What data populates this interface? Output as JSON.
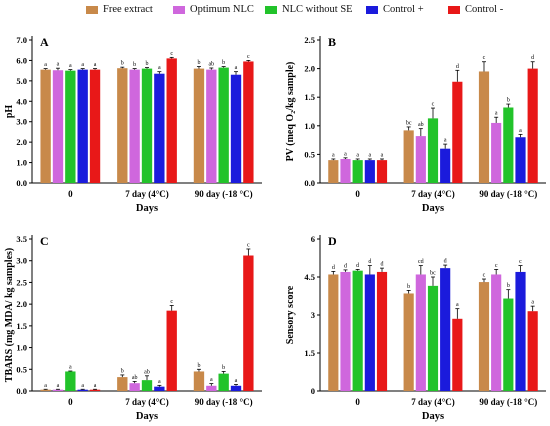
{
  "legend": {
    "items": [
      {
        "label": "Free extract",
        "color": "#c8894a"
      },
      {
        "label": "Optimum NLC",
        "color": "#cf67dd"
      },
      {
        "label": "NLC without SE",
        "color": "#22c32a"
      },
      {
        "label": "Control +",
        "color": "#1b1bdc"
      },
      {
        "label": "Control -",
        "color": "#e81818"
      }
    ]
  },
  "chart_data": [
    {
      "type": "bar",
      "panel": "A",
      "ylabel": "pH",
      "xlabel": "Days",
      "categories": [
        "0",
        "7 day (4°C)",
        "90 day (-18 °C)"
      ],
      "ylim": [
        0,
        7
      ],
      "yticks": [
        "0.0",
        "1.0",
        "2.0",
        "3.0",
        "4.0",
        "5.0",
        "6.0",
        "7.0"
      ],
      "series": [
        {
          "name": "Free extract",
          "values": [
            5.55,
            5.62,
            5.6
          ],
          "errors": [
            0.05,
            0.05,
            0.1
          ],
          "letters": [
            "a",
            "b",
            "b"
          ]
        },
        {
          "name": "Optimum NLC",
          "values": [
            5.52,
            5.55,
            5.55
          ],
          "errors": [
            0.1,
            0.05,
            0.08
          ],
          "letters": [
            "a",
            "b",
            "ab"
          ]
        },
        {
          "name": "NLC without SE",
          "values": [
            5.5,
            5.6,
            5.65
          ],
          "errors": [
            0.05,
            0.05,
            0.05
          ],
          "letters": [
            "a",
            "b",
            "b"
          ]
        },
        {
          "name": "Control +",
          "values": [
            5.55,
            5.35,
            5.3
          ],
          "errors": [
            0.05,
            0.1,
            0.15
          ],
          "letters": [
            "a",
            "a",
            "a"
          ]
        },
        {
          "name": "Control -",
          "values": [
            5.55,
            6.1,
            5.95
          ],
          "errors": [
            0.05,
            0.05,
            0.05
          ],
          "letters": [
            "a",
            "c",
            "c"
          ]
        }
      ]
    },
    {
      "type": "bar",
      "panel": "B",
      "ylabel": "PV (meq O₂/kg sample)",
      "xlabel": "Days",
      "categories": [
        "0",
        "7 day (4°C)",
        "90 day (-18 °C)"
      ],
      "ylim": [
        0,
        2.5
      ],
      "yticks": [
        "0.0",
        "0.5",
        "1.0",
        "1.5",
        "2.0",
        "2.5"
      ],
      "series": [
        {
          "name": "Free extract",
          "values": [
            0.4,
            0.92,
            1.95
          ],
          "errors": [
            0.02,
            0.06,
            0.17
          ],
          "letters": [
            "a",
            "bc",
            "c"
          ]
        },
        {
          "name": "Optimum NLC",
          "values": [
            0.42,
            0.82,
            1.05
          ],
          "errors": [
            0.02,
            0.13,
            0.1
          ],
          "letters": [
            "a",
            "ab",
            "a"
          ]
        },
        {
          "name": "NLC without SE",
          "values": [
            0.4,
            1.13,
            1.32
          ],
          "errors": [
            0.02,
            0.18,
            0.06
          ],
          "letters": [
            "a",
            "c",
            "b"
          ]
        },
        {
          "name": "Control +",
          "values": [
            0.4,
            0.6,
            0.8
          ],
          "errors": [
            0.02,
            0.08,
            0.05
          ],
          "letters": [
            "a",
            "a",
            "a"
          ]
        },
        {
          "name": "Control -",
          "values": [
            0.4,
            1.77,
            2.0
          ],
          "errors": [
            0.02,
            0.2,
            0.12
          ],
          "letters": [
            "a",
            "d",
            "d"
          ]
        }
      ]
    },
    {
      "type": "bar",
      "panel": "C",
      "ylabel": "TBARS (mg MDA/ kg samples)",
      "xlabel": "Days",
      "categories": [
        "0",
        "7 day (4°C)",
        "90 day (-18 °C)"
      ],
      "ylim": [
        0,
        3.5
      ],
      "yticks": [
        "0.0",
        "0.5",
        "1.0",
        "1.5",
        "2.0",
        "2.5",
        "3.0",
        "3.5"
      ],
      "series": [
        {
          "name": "Free extract",
          "values": [
            0.03,
            0.32,
            0.45
          ],
          "errors": [
            0.01,
            0.05,
            0.05
          ],
          "letters": [
            "a",
            "b",
            "b"
          ]
        },
        {
          "name": "Optimum NLC",
          "values": [
            0.03,
            0.18,
            0.12
          ],
          "errors": [
            0.01,
            0.04,
            0.05
          ],
          "letters": [
            "a",
            "ab",
            "a"
          ]
        },
        {
          "name": "NLC without SE",
          "values": [
            0.45,
            0.25,
            0.4
          ],
          "errors": [
            0.01,
            0.1,
            0.05
          ],
          "letters": [
            "a",
            "ab",
            "b"
          ]
        },
        {
          "name": "Control +",
          "values": [
            0.03,
            0.1,
            0.12
          ],
          "errors": [
            0.01,
            0.03,
            0.03
          ],
          "letters": [
            "a",
            "a",
            "a"
          ]
        },
        {
          "name": "Control -",
          "values": [
            0.03,
            1.85,
            3.12
          ],
          "errors": [
            0.01,
            0.12,
            0.15
          ],
          "letters": [
            "a",
            "c",
            "c"
          ]
        }
      ]
    },
    {
      "type": "bar",
      "panel": "D",
      "ylabel": "Sensory score",
      "xlabel": "Days",
      "categories": [
        "0",
        "7 day (4°C)",
        "90 day (-18 °C)"
      ],
      "ylim": [
        0,
        6
      ],
      "yticks": [
        "0",
        "1.5",
        "3",
        "4.5",
        "6"
      ],
      "series": [
        {
          "name": "Free extract",
          "values": [
            4.6,
            3.85,
            4.3
          ],
          "errors": [
            0.12,
            0.12,
            0.12
          ],
          "letters": [
            "d",
            "b",
            "c"
          ]
        },
        {
          "name": "Optimum NLC",
          "values": [
            4.7,
            4.6,
            4.6
          ],
          "errors": [
            0.08,
            0.35,
            0.2
          ],
          "letters": [
            "d",
            "cd",
            "c"
          ]
        },
        {
          "name": "NLC without SE",
          "values": [
            4.75,
            4.15,
            3.65
          ],
          "errors": [
            0.05,
            0.35,
            0.35
          ],
          "letters": [
            "d",
            "bc",
            "b"
          ]
        },
        {
          "name": "Control +",
          "values": [
            4.6,
            4.85,
            4.7
          ],
          "errors": [
            0.35,
            0.12,
            0.25
          ],
          "letters": [
            "d",
            "d",
            "c"
          ]
        },
        {
          "name": "Control -",
          "values": [
            4.7,
            2.85,
            3.15
          ],
          "errors": [
            0.15,
            0.4,
            0.2
          ],
          "letters": [
            "d",
            "a",
            "a"
          ]
        }
      ]
    }
  ]
}
